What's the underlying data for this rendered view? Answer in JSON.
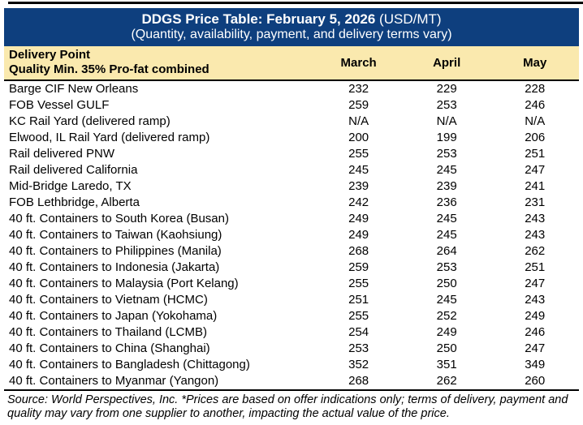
{
  "colors": {
    "header_bg": "#0E3F7E",
    "subheader_bg": "#FAE9AE",
    "border": "#000000",
    "header_text": "#FFFFFF"
  },
  "header": {
    "title_bold": "DDGS Price Table: February 5, 2026",
    "title_regular": " (USD/MT)",
    "subtitle": "(Quantity, availability, payment, and delivery terms vary)"
  },
  "columns": {
    "delivery_point_line1": "Delivery Point",
    "delivery_point_line2": "Quality Min. 35% Pro-fat combined",
    "months": [
      "March",
      "April",
      "May"
    ]
  },
  "table": {
    "rows": [
      {
        "label": "Barge CIF New Orleans",
        "march": "232",
        "april": "229",
        "may": "228"
      },
      {
        "label": "FOB Vessel GULF",
        "march": "259",
        "april": "253",
        "may": "246"
      },
      {
        "label": "KC Rail Yard (delivered ramp)",
        "march": "N/A",
        "april": "N/A",
        "may": "N/A"
      },
      {
        "label": "Elwood, IL Rail Yard (delivered ramp)",
        "march": "200",
        "april": "199",
        "may": "206"
      },
      {
        "label": "Rail delivered PNW",
        "march": "255",
        "april": "253",
        "may": "251"
      },
      {
        "label": "Rail delivered California",
        "march": "245",
        "april": "245",
        "may": "247"
      },
      {
        "label": "Mid-Bridge Laredo, TX",
        "march": "239",
        "april": "239",
        "may": "241"
      },
      {
        "label": "FOB Lethbridge, Alberta",
        "march": "242",
        "april": "236",
        "may": "231"
      },
      {
        "label": "40 ft. Containers to South Korea (Busan)",
        "march": "249",
        "april": "245",
        "may": "243"
      },
      {
        "label": "40 ft. Containers to Taiwan (Kaohsiung)",
        "march": "249",
        "april": "245",
        "may": "243"
      },
      {
        "label": "40 ft. Containers to Philippines (Manila)",
        "march": "268",
        "april": "264",
        "may": "262"
      },
      {
        "label": "40 ft. Containers to Indonesia (Jakarta)",
        "march": "259",
        "april": "253",
        "may": "251"
      },
      {
        "label": "40 ft. Containers to Malaysia (Port Kelang)",
        "march": "255",
        "april": "250",
        "may": "247"
      },
      {
        "label": "40 ft. Containers to Vietnam (HCMC)",
        "march": "251",
        "april": "245",
        "may": "243"
      },
      {
        "label": "40 ft. Containers to Japan (Yokohama)",
        "march": "255",
        "april": "252",
        "may": "249"
      },
      {
        "label": "40 ft. Containers to Thailand (LCMB)",
        "march": "254",
        "april": "249",
        "may": "246"
      },
      {
        "label": "40 ft. Containers to China (Shanghai)",
        "march": "253",
        "april": "250",
        "may": "247"
      },
      {
        "label": "40 ft. Containers to Bangladesh (Chittagong)",
        "march": "352",
        "april": "351",
        "may": "349"
      },
      {
        "label": "40 ft. Containers to Myanmar (Yangon)",
        "march": "268",
        "april": "262",
        "may": "260"
      }
    ]
  },
  "footer": {
    "source_note": "Source: World Perspectives, Inc. *Prices are based on offer indications only; terms of delivery, payment and quality may vary from one supplier to another, impacting the actual value of the price."
  }
}
